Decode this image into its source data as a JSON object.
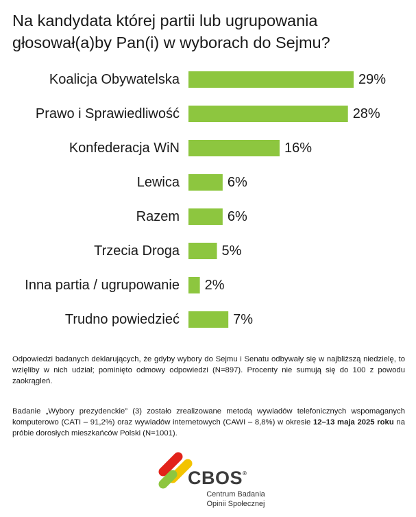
{
  "title": "Na kandydata której partii lub ugrupowania głosował(a)by Pan(i) w wyborach do Sejmu?",
  "chart_data": {
    "type": "bar",
    "orientation": "horizontal",
    "title": "Na kandydata której partii lub ugrupowania głosował(a)by Pan(i) w wyborach do Sejmu?",
    "categories": [
      "Koalicja Obywatelska",
      "Prawo i Sprawiedliwość",
      "Konfederacja WiN",
      "Lewica",
      "Razem",
      "Trzecia Droga",
      "Inna partia / ugrupowanie",
      "Trudno powiedzieć"
    ],
    "values": [
      29,
      28,
      16,
      6,
      6,
      5,
      2,
      7
    ],
    "value_labels": [
      "29%",
      "28%",
      "16%",
      "6%",
      "6%",
      "5%",
      "2%",
      "7%"
    ],
    "unit": "%",
    "xlim": [
      0,
      29
    ],
    "grid": false,
    "legend": "none",
    "colors": {
      "bar": "#8dc63f"
    }
  },
  "notes": {
    "note1": "Odpowiedzi badanych deklarujących, że gdyby wybory do Sejmu i Senatu odbywały się w najbliższą niedzielę, to wzięliby w nich udział; pominięto odmowy odpowiedzi (N=897). Procenty nie sumują się do 100 z powodu zaokrągleń.",
    "note2_before": "Badanie „Wybory prezydenckie” (3) zostało zrealizowane metodą wywiadów telefonicznych wspomaganych komputerowo (CATI – 91,2%) oraz wywiadów internetowych (CAWI – 8,8%) w okresie ",
    "note2_bold": "12–13 maja 2025 roku",
    "note2_after": " na próbie dorosłych mieszkańców Polski (N=1001)."
  },
  "logo": {
    "wordmark": "CBOS",
    "registered": "®",
    "subtitle_line1": "Centrum Badania",
    "subtitle_line2": "Opinii Społecznej",
    "colors": {
      "red": "#e2231a",
      "yellow": "#f3c300",
      "green": "#8dc63f",
      "text": "#3b3b3b"
    }
  }
}
